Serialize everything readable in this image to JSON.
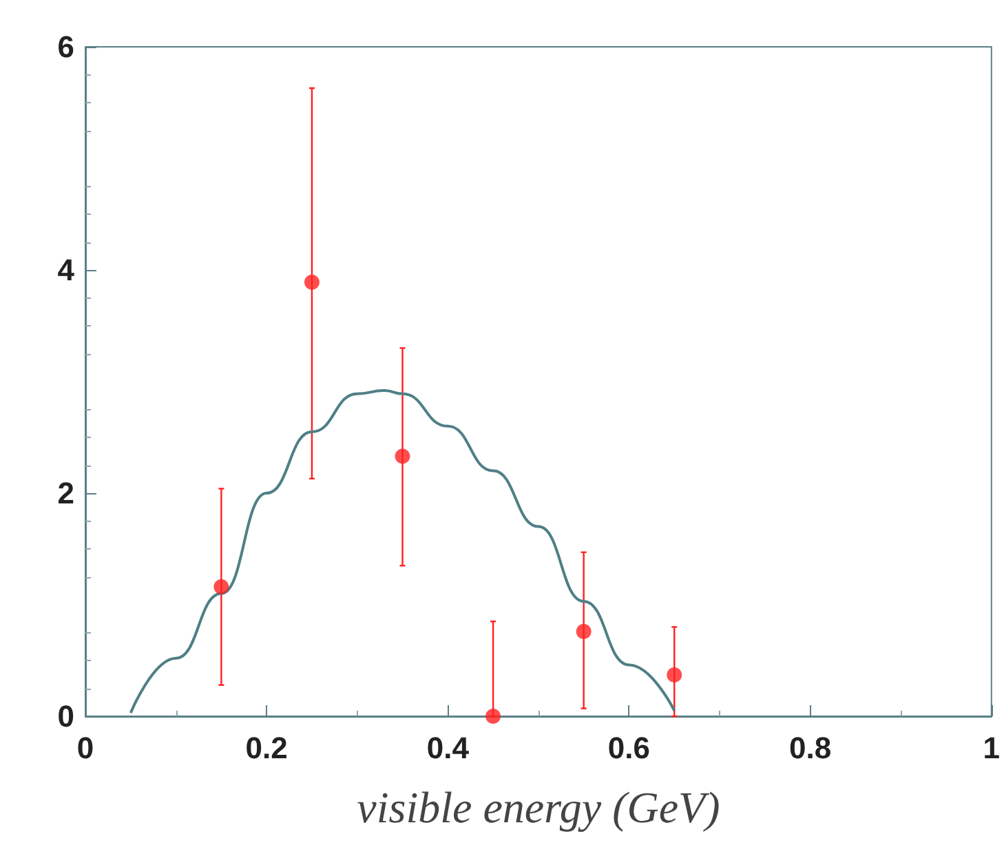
{
  "chart_data": {
    "type": "scatter",
    "xlabel": "visible energy (GeV)",
    "xlim": [
      0,
      1
    ],
    "xticks": [
      0,
      0.2,
      0.4,
      0.6,
      0.8,
      1
    ],
    "ylim": [
      0,
      6
    ],
    "yticks": [
      0,
      2,
      4,
      6
    ],
    "grid": false,
    "marker": "circle",
    "series": [
      {
        "color": "#ff2020",
        "x": [
          0.15,
          0.25,
          0.35,
          0.45,
          0.55,
          0.65
        ],
        "values": [
          1.16,
          3.89,
          2.33,
          0,
          0.76,
          0.37
        ],
        "errors": [
          [
            0.28,
            2.04
          ],
          [
            2.13,
            5.63
          ],
          [
            1.35,
            3.3
          ],
          [
            0,
            0.85
          ],
          [
            0.07,
            1.47
          ],
          [
            0,
            0.8
          ]
        ]
      },
      {
        "type": "line",
        "color": "#4f7f86",
        "marker": "none",
        "x": [
          0.05,
          0.1,
          0.15,
          0.2,
          0.25,
          0.3,
          0.33,
          0.35,
          0.4,
          0.45,
          0.5,
          0.55,
          0.6,
          0.65
        ],
        "values": [
          0.03,
          0.52,
          1.1,
          2.0,
          2.55,
          2.89,
          2.92,
          2.89,
          2.6,
          2.2,
          1.7,
          1.03,
          0.46,
          0.05
        ]
      }
    ]
  }
}
